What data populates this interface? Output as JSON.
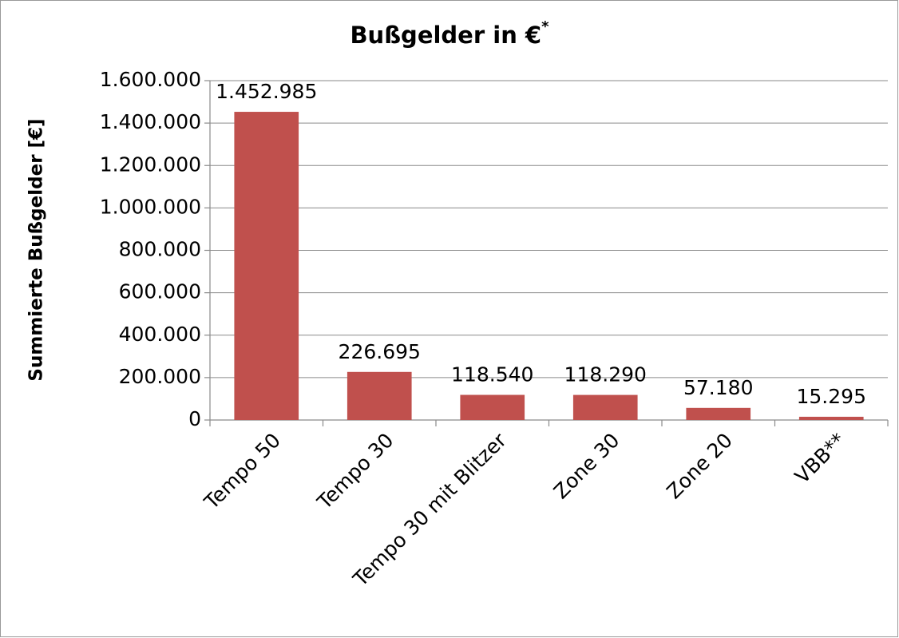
{
  "chart_data": {
    "type": "bar",
    "title": "Bußgelder in €",
    "title_superscript": "*",
    "y_axis_label": "Summierte Bußgelder [€]",
    "categories": [
      "Tempo 50",
      "Tempo 30",
      "Tempo 30 mit Blitzer",
      "Zone 30",
      "Zone 20",
      "VBB**"
    ],
    "values": [
      1452985,
      226695,
      118540,
      118290,
      57180,
      15295
    ],
    "value_labels": [
      "1.452.985",
      "226.695",
      "118.540",
      "118.290",
      "57.180",
      "15.295"
    ],
    "color": "#c0504d",
    "ylim": [
      0,
      1600000
    ],
    "yticks": [
      0,
      {
        "value": 200000,
        "label": "200.000"
      },
      {
        "value": 400000,
        "label": "400.000"
      },
      {
        "value": 600000,
        "label": "600.000"
      },
      {
        "value": 800000,
        "label": "800.000"
      },
      {
        "value": 1000000,
        "label": "1.000.000"
      },
      {
        "value": 1200000,
        "label": "1.200.000"
      },
      {
        "value": 1400000,
        "label": "1.400.000"
      },
      {
        "value": 1600000,
        "label": "1.600.000"
      }
    ],
    "grid": true
  }
}
